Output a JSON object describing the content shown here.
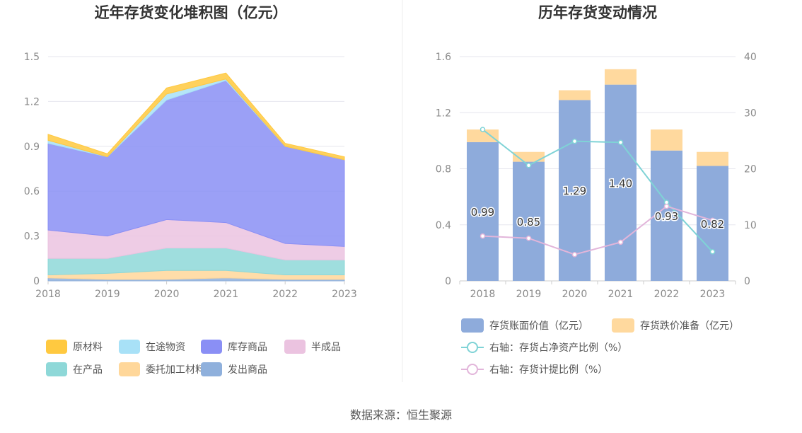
{
  "source_text": "数据来源：恒生聚源",
  "colors": {
    "raw": "#FFC940",
    "transit": "#A8E1F7",
    "inventory": "#8A8FF5",
    "semi": "#EBC3E0",
    "wip": "#8ED8D8",
    "consign": "#FFD79A",
    "shipped": "#8FB0DC",
    "book_bar": "#8EABDB",
    "provision_bar": "#FFD99E",
    "line_net": "#7FD3D6",
    "line_prov": "#E2B5DA",
    "grid": "#E6E6EE",
    "axis": "#CCCCCC"
  },
  "chart_data": [
    {
      "type": "area",
      "title": "近年存货变化堆积图（亿元）",
      "x": [
        "2018",
        "2019",
        "2020",
        "2021",
        "2022",
        "2023"
      ],
      "ylim": [
        0,
        1.5
      ],
      "yticks": [
        "0",
        "0.3",
        "0.6",
        "0.9",
        "1.2",
        "1.5"
      ],
      "stacked": true,
      "legend_position": "bottom",
      "series": [
        {
          "name": "发出商品",
          "color_key": "shipped",
          "values": [
            0.02,
            0.01,
            0.01,
            0.02,
            0.01,
            0.01
          ]
        },
        {
          "name": "委托加工材料",
          "color_key": "consign",
          "values": [
            0.02,
            0.04,
            0.06,
            0.05,
            0.03,
            0.03
          ]
        },
        {
          "name": "在产品",
          "color_key": "wip",
          "values": [
            0.11,
            0.1,
            0.15,
            0.15,
            0.1,
            0.1
          ]
        },
        {
          "name": "半成品",
          "color_key": "semi",
          "values": [
            0.19,
            0.15,
            0.19,
            0.17,
            0.11,
            0.09
          ]
        },
        {
          "name": "库存商品",
          "color_key": "inventory",
          "values": [
            0.58,
            0.53,
            0.8,
            0.95,
            0.65,
            0.58
          ]
        },
        {
          "name": "在途物资",
          "color_key": "transit",
          "values": [
            0.02,
            0.0,
            0.04,
            0.01,
            0.0,
            0.0
          ]
        },
        {
          "name": "原材料",
          "color_key": "raw",
          "values": [
            0.04,
            0.02,
            0.04,
            0.04,
            0.02,
            0.02
          ]
        }
      ],
      "legend": [
        {
          "name": "原材料",
          "color_key": "raw"
        },
        {
          "name": "在途物资",
          "color_key": "transit"
        },
        {
          "name": "库存商品",
          "color_key": "inventory"
        },
        {
          "name": "半成品",
          "color_key": "semi"
        },
        {
          "name": "在产品",
          "color_key": "wip"
        },
        {
          "name": "委托加工材料",
          "color_key": "consign"
        },
        {
          "name": "发出商品",
          "color_key": "shipped"
        }
      ]
    },
    {
      "type": "bar",
      "title": "历年存货变动情况",
      "categories": [
        "2018",
        "2019",
        "2020",
        "2021",
        "2022",
        "2023"
      ],
      "ylim": [
        0,
        1.6
      ],
      "yticks": [
        "0",
        "0.4",
        "0.8",
        "1.2",
        "1.6"
      ],
      "y2lim": [
        0,
        40
      ],
      "y2ticks": [
        "0",
        "10",
        "20",
        "30",
        "40"
      ],
      "stacked": true,
      "legend_position": "bottom",
      "bar_series": [
        {
          "name": "存货账面价值（亿元）",
          "color_key": "book_bar",
          "values": [
            0.99,
            0.85,
            1.29,
            1.4,
            0.93,
            0.82
          ],
          "labels": [
            "0.99",
            "0.85",
            "1.29",
            "1.40",
            "0.93",
            "0.82"
          ]
        },
        {
          "name": "存货跌价准备（亿元）",
          "color_key": "provision_bar",
          "values": [
            0.09,
            0.07,
            0.07,
            0.11,
            0.15,
            0.1
          ]
        }
      ],
      "line_series": [
        {
          "name": "右轴：存货占净资产比例（%）",
          "color_key": "line_net",
          "values": [
            27.0,
            20.6,
            24.9,
            24.7,
            14.0,
            5.2
          ]
        },
        {
          "name": "右轴：存货计提比例（%）",
          "color_key": "line_prov",
          "values": [
            8.0,
            7.6,
            4.7,
            6.9,
            13.3,
            10.8
          ]
        }
      ]
    }
  ]
}
